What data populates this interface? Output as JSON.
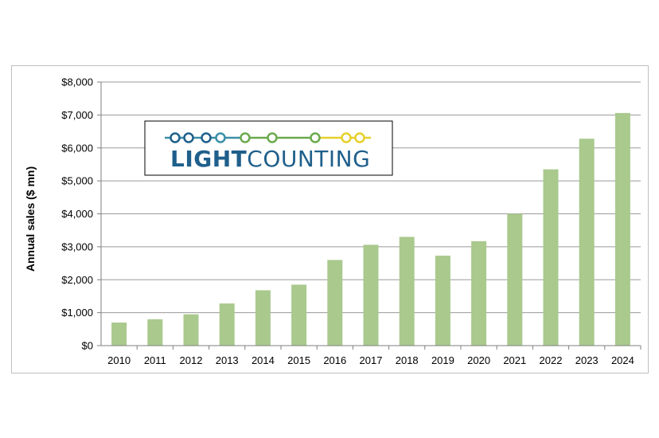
{
  "chart_data": {
    "type": "bar",
    "categories": [
      "2010",
      "2011",
      "2012",
      "2013",
      "2014",
      "2015",
      "2016",
      "2017",
      "2018",
      "2019",
      "2020",
      "2021",
      "2022",
      "2023",
      "2024"
    ],
    "values": [
      700,
      800,
      950,
      1280,
      1680,
      1850,
      2600,
      3060,
      3300,
      2730,
      3170,
      4000,
      5350,
      6280,
      7060
    ],
    "title": "",
    "xlabel": "",
    "ylabel": "Annual sales ($ mn)",
    "ylim": [
      0,
      8000
    ],
    "yticks": [
      "$0",
      "$1,000",
      "$2,000",
      "$3,000",
      "$4,000",
      "$5,000",
      "$6,000",
      "$7,000",
      "$8,000"
    ],
    "grid": true,
    "bar_color": "#a9c98d",
    "grid_color": "#9a9a9a"
  },
  "logo": {
    "text_bold": "LIGHT",
    "text_light": "COUNTING",
    "color_dark": "#1f5f8b",
    "color_mid": "#3b8fa8",
    "color_green": "#6aaa4e",
    "color_yellow": "#e6d02a"
  }
}
